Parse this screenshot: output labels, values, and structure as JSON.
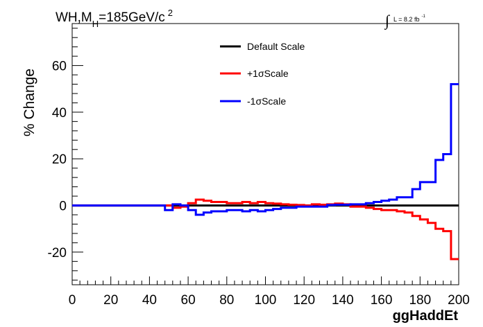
{
  "title": {
    "main": "WH,M",
    "subscript": "H",
    "rest": "=185GeV/c",
    "superscript": "2"
  },
  "lumi": {
    "integral_symbol": "∫",
    "text": "L = 8.2 fb",
    "exponent": "-1"
  },
  "chart_data": {
    "type": "line",
    "xlabel": "ggHaddEt",
    "ylabel": "% Change",
    "xlim": [
      0,
      200
    ],
    "ylim": [
      -34,
      78
    ],
    "x_ticks": [
      0,
      20,
      40,
      60,
      80,
      100,
      120,
      140,
      160,
      180,
      200
    ],
    "y_ticks": [
      -20,
      0,
      20,
      40,
      60
    ],
    "grid": false,
    "legend_position": "top-center",
    "bin_edges": [
      0,
      4,
      8,
      12,
      16,
      20,
      24,
      28,
      32,
      36,
      40,
      44,
      48,
      52,
      56,
      60,
      64,
      68,
      72,
      76,
      80,
      84,
      88,
      92,
      96,
      100,
      104,
      108,
      112,
      116,
      120,
      124,
      128,
      132,
      136,
      140,
      144,
      148,
      152,
      156,
      160,
      164,
      168,
      172,
      176,
      180,
      184,
      188,
      192,
      196,
      200
    ],
    "series": [
      {
        "name": "Default Scale",
        "color": "#000000",
        "values": [
          0,
          0,
          0,
          0,
          0,
          0,
          0,
          0,
          0,
          0,
          0,
          0,
          0,
          0,
          0,
          0,
          0,
          0,
          0,
          0,
          0,
          0,
          0,
          0,
          0,
          0,
          0,
          0,
          0,
          0,
          0,
          0,
          0,
          0,
          0,
          0,
          0,
          0,
          0,
          0,
          0,
          0,
          0,
          0,
          0,
          0,
          0,
          0,
          0,
          0
        ]
      },
      {
        "name": "+1σScale",
        "color": "#ff0000",
        "values": [
          0,
          0,
          0,
          0,
          0,
          0,
          0,
          0,
          0,
          0,
          0,
          0,
          0,
          -1,
          -0.5,
          1,
          2.5,
          2,
          1.5,
          1.5,
          1,
          1,
          1.5,
          1,
          1.5,
          1,
          0.8,
          0.5,
          0.3,
          0.2,
          0,
          0.5,
          0.3,
          0.5,
          0.8,
          0.5,
          -0.5,
          -0.5,
          -1,
          -1.5,
          -2,
          -2,
          -2.5,
          -3,
          -4.5,
          -6,
          -7.5,
          -10,
          -11,
          -23
        ]
      },
      {
        "name": "-1σScale",
        "color": "#0000ff",
        "values": [
          0,
          0,
          0,
          0,
          0,
          0,
          0,
          0,
          0,
          0,
          0,
          0,
          -2,
          0.5,
          0,
          -2,
          -4,
          -3,
          -2.5,
          -2.5,
          -2,
          -2,
          -2.5,
          -2,
          -2.5,
          -2,
          -1.5,
          -1,
          -1,
          -0.5,
          -0.5,
          -0.5,
          -0.5,
          0.2,
          0.3,
          0.3,
          0.5,
          0.5,
          1,
          1.5,
          2,
          2.5,
          3.5,
          3.5,
          7,
          10,
          10,
          19.5,
          22,
          52
        ]
      }
    ]
  }
}
